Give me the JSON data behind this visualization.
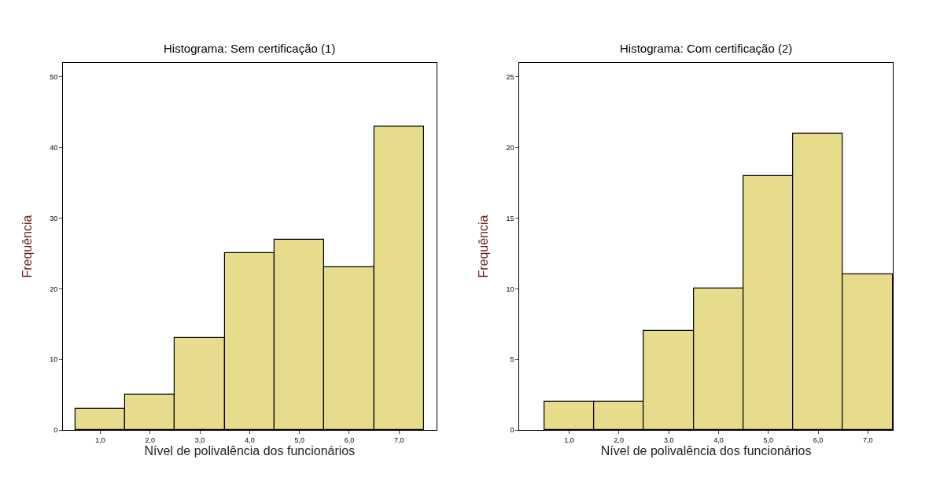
{
  "chart_data": [
    {
      "type": "histogram",
      "title": "Histograma: Sem certificação (1)",
      "xlabel": "Nível de polivalência dos funcionários",
      "ylabel": "Frequência",
      "bins": [
        0.5,
        1.5,
        2.5,
        3.5,
        4.5,
        5.5,
        6.5,
        7.5
      ],
      "values": [
        3,
        5,
        13,
        25,
        27,
        23,
        43
      ],
      "color": "#e6dc8c",
      "xlim": [
        0.25,
        7.75
      ],
      "xticks": [
        {
          "value": 1,
          "label": "1,0"
        },
        {
          "value": 2,
          "label": "2,0"
        },
        {
          "value": 3,
          "label": "3,0"
        },
        {
          "value": 4,
          "label": "4,0"
        },
        {
          "value": 5,
          "label": "5,0"
        },
        {
          "value": 6,
          "label": "6,0"
        },
        {
          "value": 7,
          "label": "7,0"
        }
      ],
      "ylim": [
        0,
        52
      ],
      "yticks": [
        0,
        10,
        20,
        30,
        40,
        50
      ]
    },
    {
      "type": "histogram",
      "title": "Histograma: Com certificação (2)",
      "xlabel": "Nível de polivalência dos funcionários",
      "ylabel": "Frequência",
      "bins": [
        0.5,
        1.5,
        2.5,
        3.5,
        4.5,
        5.5,
        6.5,
        7.5
      ],
      "values": [
        2,
        2,
        7,
        10,
        18,
        21,
        11
      ],
      "color": "#e6dc8c",
      "xlim": [
        0.0,
        7.5
      ],
      "xticks": [
        {
          "value": 1,
          "label": "1,0"
        },
        {
          "value": 2,
          "label": "2,0"
        },
        {
          "value": 3,
          "label": "3,0"
        },
        {
          "value": 4,
          "label": "4,0"
        },
        {
          "value": 5,
          "label": "5,0"
        },
        {
          "value": 6,
          "label": "6,0"
        },
        {
          "value": 7,
          "label": "7,0"
        }
      ],
      "ylim": [
        0,
        26
      ],
      "yticks": [
        0,
        5,
        10,
        15,
        20,
        25
      ]
    }
  ]
}
